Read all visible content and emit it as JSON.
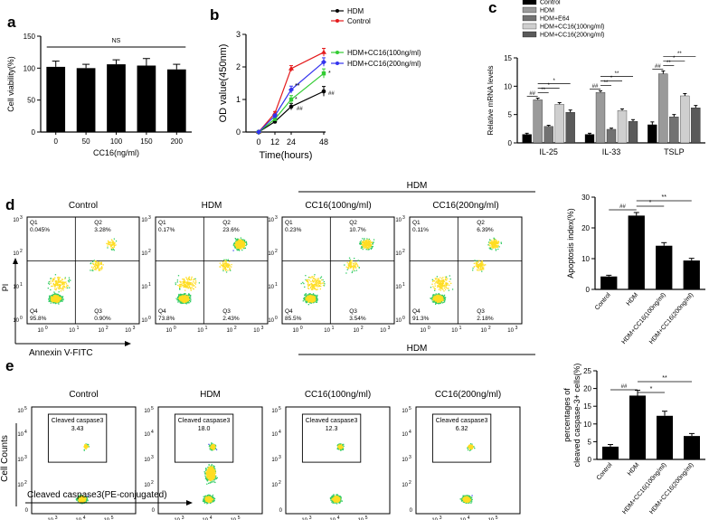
{
  "panel_letters": [
    "a",
    "b",
    "c",
    "d",
    "e"
  ],
  "chart_data": [
    {
      "id": "a",
      "type": "bar",
      "ylabel": "Cell viability(%)",
      "xlabel": "CC16(ng/ml)",
      "categories": [
        "0",
        "50",
        "100",
        "150",
        "200"
      ],
      "values": [
        102,
        100,
        106,
        104,
        98
      ],
      "errors": [
        9,
        6,
        7,
        11,
        8
      ],
      "ylim": [
        0,
        150
      ],
      "yticks": [
        0,
        50,
        100,
        150
      ],
      "significance": [
        {
          "from": 0,
          "to": 4,
          "label": "NS"
        }
      ]
    },
    {
      "id": "b",
      "type": "line",
      "ylabel": "OD value(450nm)",
      "xlabel": "Time(hours)",
      "x": [
        0,
        12,
        24,
        48
      ],
      "xticks": [
        "0",
        "12",
        "24",
        "48"
      ],
      "ylim": [
        0,
        3
      ],
      "yticks": [
        "0",
        "1",
        "2",
        "3"
      ],
      "series": [
        {
          "name": "HDM",
          "color": "#000000",
          "marker": "circle",
          "values": [
            0.0,
            0.32,
            0.78,
            1.25
          ],
          "errors": [
            0,
            0.04,
            0.1,
            0.15
          ]
        },
        {
          "name": "Control",
          "color": "#e41a1c",
          "marker": "triangle",
          "values": [
            0.0,
            0.58,
            1.95,
            2.45
          ],
          "errors": [
            0,
            0.05,
            0.09,
            0.12
          ]
        },
        {
          "name": "HDM+CC16(100ng/ml)",
          "color": "#33cc33",
          "marker": "square",
          "values": [
            0.0,
            0.4,
            1.0,
            1.8
          ],
          "errors": [
            0,
            0.05,
            0.12,
            0.14
          ]
        },
        {
          "name": "HDM+CC16(200ng/ml)",
          "color": "#3333ee",
          "marker": "diamond",
          "values": [
            0.0,
            0.5,
            1.3,
            2.15
          ],
          "errors": [
            0,
            0.05,
            0.11,
            0.13
          ]
        }
      ],
      "annotations": [
        "##",
        "**",
        "*",
        "*",
        "##"
      ]
    },
    {
      "id": "c",
      "type": "bar",
      "ylabel": "Relative mRNA levels",
      "categories": [
        "IL-25",
        "IL-33",
        "TSLP"
      ],
      "ylim": [
        0,
        15
      ],
      "yticks": [
        "0",
        "5",
        "10",
        "15"
      ],
      "series": [
        {
          "name": "Control",
          "color": "#000000",
          "values": [
            1.5,
            1.5,
            3.2
          ],
          "errors": [
            0.2,
            0.2,
            0.5
          ]
        },
        {
          "name": "HDM",
          "color": "#9a9a9a",
          "values": [
            7.6,
            8.9,
            12.2
          ],
          "errors": [
            0.3,
            0.3,
            0.5
          ]
        },
        {
          "name": "HDM+E64",
          "color": "#727272",
          "values": [
            2.9,
            2.4,
            4.6
          ],
          "errors": [
            0.2,
            0.2,
            0.4
          ]
        },
        {
          "name": "HDM+CC16(100ng/ml)",
          "color": "#cfcfcf",
          "values": [
            6.8,
            5.7,
            8.3
          ],
          "errors": [
            0.3,
            0.3,
            0.4
          ]
        },
        {
          "name": "HDM+CC16(200ng/ml)",
          "color": "#5a5a5a",
          "values": [
            5.4,
            3.8,
            6.2
          ],
          "errors": [
            0.4,
            0.3,
            0.4
          ]
        }
      ],
      "annotations": [
        "##",
        "**",
        "*",
        "*",
        "##",
        "**",
        "*",
        "**",
        "##",
        "**",
        "*",
        "**"
      ]
    },
    {
      "id": "d-bar",
      "type": "bar",
      "ylabel": "Apoptosis index(%)",
      "categories": [
        "Control",
        "HDM",
        "HDM+CC16(100ng/ml)",
        "HDM+CC16(200ng/ml)"
      ],
      "values": [
        4.2,
        24.0,
        14.2,
        9.4
      ],
      "errors": [
        0.4,
        1.0,
        1.0,
        0.7
      ],
      "ylim": [
        0,
        30
      ],
      "yticks": [
        "0",
        "10",
        "20",
        "30"
      ],
      "annotations": [
        "##",
        "*",
        "**"
      ]
    },
    {
      "id": "e-bar",
      "type": "bar",
      "ylabel": "percentages of cleaved caspase-3+ cells(%)",
      "categories": [
        "Control",
        "HDM",
        "HDM+CC16(100ng/ml)",
        "HDM+CC16(200ng/ml)"
      ],
      "values": [
        3.6,
        18.0,
        12.3,
        6.6
      ],
      "errors": [
        0.6,
        1.5,
        1.3,
        0.7
      ],
      "ylim": [
        0,
        25
      ],
      "yticks": [
        "0",
        "5",
        "10",
        "15",
        "20",
        "25"
      ],
      "annotations": [
        "##",
        "*",
        "**"
      ]
    }
  ],
  "flow_d": {
    "hdm_bracket": "HDM",
    "y_axis": "PI",
    "x_axis": "Annexin V-FITC",
    "plots": [
      {
        "title": "Control",
        "q1": "Q1",
        "q1v": "0.045%",
        "q2": "Q2",
        "q2v": "3.28%",
        "q3": "Q3",
        "q3v": "0.90%",
        "q4": "Q4",
        "q4v": "95.8%"
      },
      {
        "title": "HDM",
        "q1": "Q1",
        "q1v": "0.17%",
        "q2": "Q2",
        "q2v": "23.6%",
        "q3": "Q3",
        "q3v": "2.43%",
        "q4": "Q4",
        "q4v": "73.8%"
      },
      {
        "title": "CC16(100ng/ml)",
        "q1": "Q1",
        "q1v": "0.23%",
        "q2": "Q2",
        "q2v": "10.7%",
        "q3": "Q3",
        "q3v": "3.54%",
        "q4": "Q4",
        "q4v": "85.5%"
      },
      {
        "title": "CC16(200ng/ml)",
        "q1": "Q1",
        "q1v": "0.11%",
        "q2": "Q2",
        "q2v": "6.39%",
        "q3": "Q3",
        "q3v": "2.18%",
        "q4": "Q4",
        "q4v": "91.3%"
      }
    ],
    "tick_labels": [
      "10",
      "0",
      "1",
      "2",
      "3"
    ]
  },
  "flow_e": {
    "hdm_bracket": "HDM",
    "y_axis": "Cell Counts",
    "x_axis": "Cleaved caspase3(PE-conjugated)",
    "plots": [
      {
        "title": "Control",
        "gate": "Cleaved caspase3",
        "value": "3.43"
      },
      {
        "title": "HDM",
        "gate": "Cleaved caspase3",
        "value": "18.0"
      },
      {
        "title": "CC16(100ng/ml)",
        "gate": "Cleaved caspase3",
        "value": "12.3"
      },
      {
        "title": "CC16(200ng/ml)",
        "gate": "Cleaved caspase3",
        "value": "6.32"
      }
    ],
    "tick_labels": [
      "10",
      "2",
      "3",
      "4",
      "5",
      "0"
    ]
  },
  "colors": {
    "scatter_low": "#4455ee",
    "scatter_mid": "#33cc66",
    "scatter_high": "#ffdd22"
  }
}
